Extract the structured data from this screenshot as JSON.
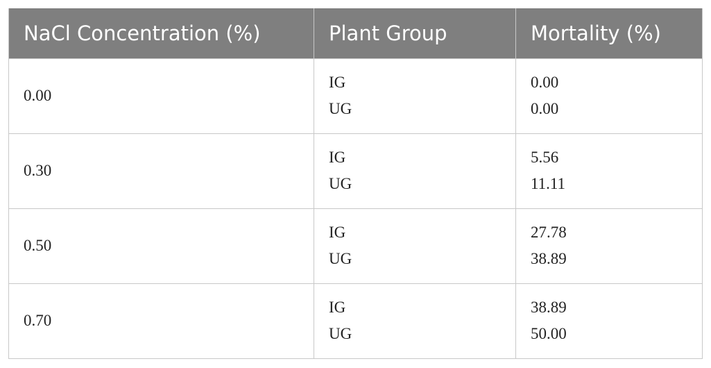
{
  "table": {
    "header": [
      "NaCl Concentration (%)",
      "Plant Group",
      "Mortality (%)"
    ],
    "rows": [
      [
        "0.00",
        [
          "IG",
          "UG"
        ],
        [
          "0.00",
          "0.00"
        ]
      ],
      [
        "0.30",
        [
          "IG",
          "UG"
        ],
        [
          "5.56",
          "11.11"
        ]
      ],
      [
        "0.50",
        [
          "IG",
          "UG"
        ],
        [
          "27.78",
          "38.89"
        ]
      ],
      [
        "0.70",
        [
          "IG",
          "UG"
        ],
        [
          "38.89",
          "50.00"
        ]
      ]
    ]
  }
}
